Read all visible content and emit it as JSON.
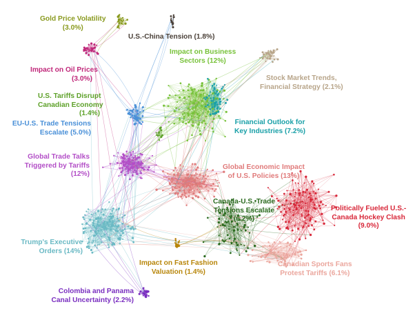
{
  "clusters": [
    {
      "id": "gold",
      "lines": [
        "Gold Price Volatility",
        "(3.0%)"
      ],
      "color": "#8a9a1f",
      "share": 3.0
    },
    {
      "id": "uschina",
      "lines": [
        "U.S.-China Tension (1.8%)"
      ],
      "color": "#4a4038",
      "share": 1.8
    },
    {
      "id": "business",
      "lines": [
        "Impact on Business",
        "Sectors (12%)"
      ],
      "color": "#78c23a",
      "share": 12
    },
    {
      "id": "stock",
      "lines": [
        "Stock Market Trends,",
        "Financial Strategy (2.1%)"
      ],
      "color": "#b8a58a",
      "share": 2.1
    },
    {
      "id": "oil",
      "lines": [
        "Impact on Oil Prices",
        "(3.0%)"
      ],
      "color": "#c0287a",
      "share": 3.0
    },
    {
      "id": "canecon",
      "lines": [
        "U.S. Tariffs Disrupt",
        "Canadian Economy",
        "(1.4%)"
      ],
      "color": "#5ea12a",
      "share": 1.4
    },
    {
      "id": "finance",
      "lines": [
        "Financial Outlook for",
        "Key Industries (7.2%)"
      ],
      "color": "#1aa0a8",
      "share": 7.2
    },
    {
      "id": "eu",
      "lines": [
        "EU-U.S. Trade Tensions",
        "Escalate (5.0%)"
      ],
      "color": "#4a90d8",
      "share": 5.0
    },
    {
      "id": "global",
      "lines": [
        "Global Trade Talks",
        "Triggered by Tariffs",
        "(12%)"
      ],
      "color": "#b34fc7",
      "share": 12
    },
    {
      "id": "geconomic",
      "lines": [
        "Global Economic Impact",
        "of U.S. Policies (13%)"
      ],
      "color": "#e07a7a",
      "share": 13
    },
    {
      "id": "canus",
      "lines": [
        "Canada-U.S. Trade",
        "Tensions Escalate",
        "(6.2%)"
      ],
      "color": "#2a6a1e",
      "share": 6.2
    },
    {
      "id": "hockey",
      "lines": [
        "Politically Fueled U.S.-",
        "Canada Hockey Clash",
        "(9.0%)"
      ],
      "color": "#d8283a",
      "share": 9.0
    },
    {
      "id": "trump",
      "lines": [
        "Trump's Executive",
        "Orders (14%)"
      ],
      "color": "#6ab9c4",
      "share": 14
    },
    {
      "id": "fashion",
      "lines": [
        "Impact on Fast Fashion",
        "Valuation (1.4%)"
      ],
      "color": "#b8860b",
      "share": 1.4
    },
    {
      "id": "sports",
      "lines": [
        "Canadian Sports Fans",
        "Protest Tariffs (6.1%)"
      ],
      "color": "#eba79e",
      "share": 6.1
    },
    {
      "id": "colombia",
      "lines": [
        "Colombia and Panama",
        "Canal Uncertainty (2.2%)"
      ],
      "color": "#7a2fc0",
      "share": 2.2
    }
  ]
}
